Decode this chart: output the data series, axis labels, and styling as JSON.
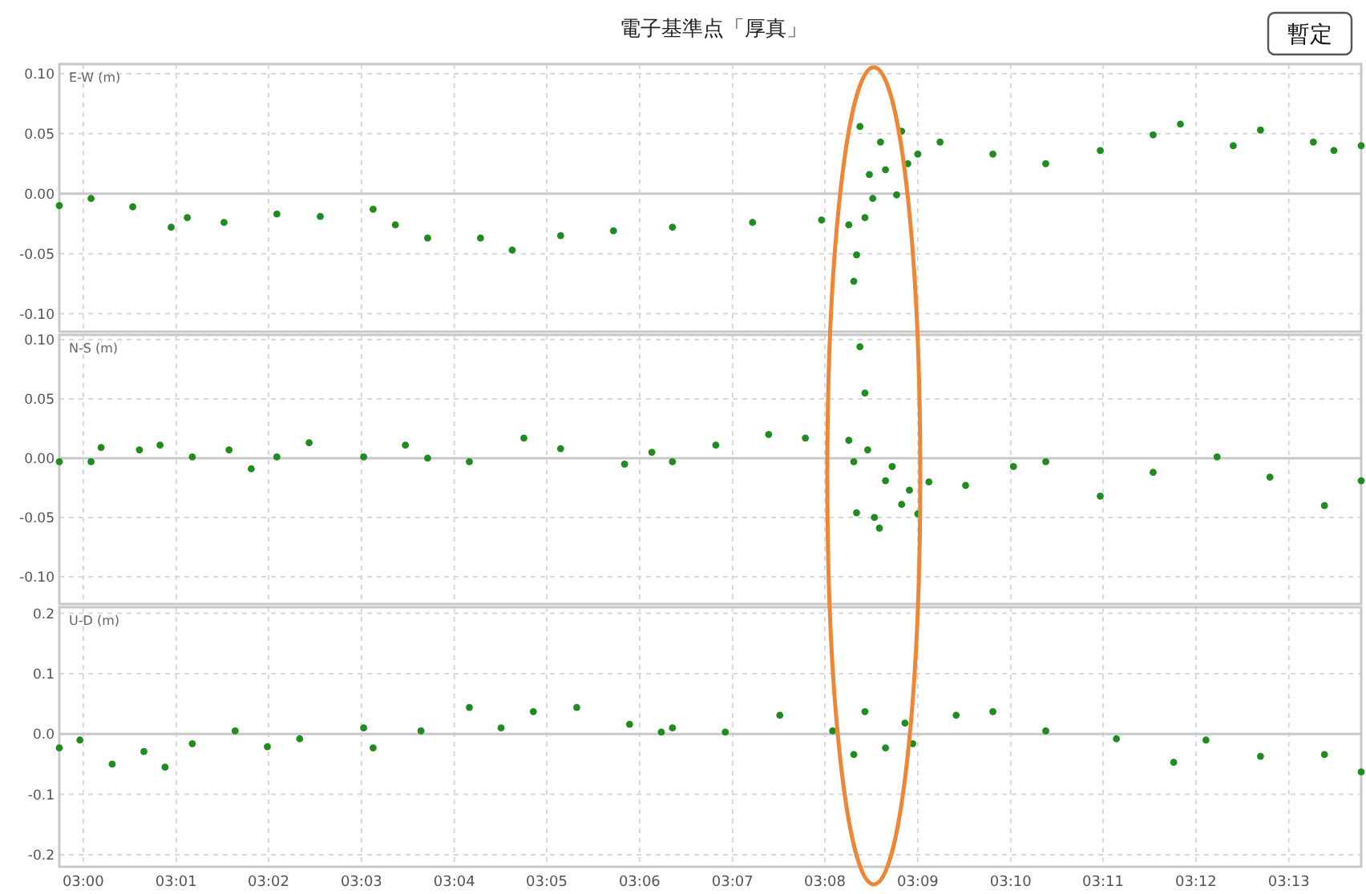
{
  "chart_data": [
    {
      "type": "scatter",
      "title": "電子基準点「厚真」",
      "annotations": [
        "暫定"
      ],
      "ylabel": "E-W (m)",
      "color": "#1f8c1f",
      "marker": "circle",
      "grid": true,
      "tick_labels": "y",
      "xticks": [
        {
          "value": 3.0,
          "label": null
        },
        {
          "value": 3.0167,
          "label": null
        },
        {
          "value": 3.0333,
          "label": null
        },
        {
          "value": 3.05,
          "label": null
        },
        {
          "value": 3.0667,
          "label": null
        },
        {
          "value": 3.0833,
          "label": null
        },
        {
          "value": 3.1,
          "label": null
        },
        {
          "value": 3.1167,
          "label": null
        },
        {
          "value": 3.1333,
          "label": null
        },
        {
          "value": 3.15,
          "label": null
        },
        {
          "value": 3.1667,
          "label": null
        },
        {
          "value": 3.1833,
          "label": null
        },
        {
          "value": 3.2,
          "label": null
        },
        {
          "value": 3.2167,
          "label": null
        }
      ],
      "x": [
        2.9957,
        3.0014,
        3.0089,
        3.0158,
        3.0187,
        3.0253,
        3.0348,
        3.0426,
        3.0521,
        3.0561,
        3.0619,
        3.0714,
        3.0771,
        3.0858,
        3.0953,
        3.1059,
        3.1203,
        3.1327,
        3.1376,
        3.1385,
        3.139,
        3.1396,
        3.1405,
        3.1413,
        3.1419,
        3.1433,
        3.1442,
        3.1462,
        3.1471,
        3.1482,
        3.15,
        3.154,
        3.1635,
        3.173,
        3.1828,
        3.1923,
        3.1972,
        3.2067,
        3.2116,
        3.2211,
        3.2248,
        3.2297
      ],
      "values": [
        -0.01,
        -0.004,
        -0.011,
        -0.028,
        -0.02,
        -0.024,
        -0.017,
        -0.019,
        -0.013,
        -0.026,
        -0.037,
        -0.037,
        -0.047,
        -0.035,
        -0.031,
        -0.028,
        -0.024,
        -0.022,
        -0.026,
        -0.073,
        -0.051,
        0.056,
        -0.02,
        0.016,
        -0.004,
        0.043,
        0.02,
        -0.001,
        0.052,
        0.025,
        0.033,
        0.043,
        0.033,
        0.025,
        0.036,
        0.049,
        0.058,
        0.04,
        0.053,
        0.043,
        0.036,
        0.04
      ],
      "xlim": [
        2.9957,
        3.2297
      ],
      "ylim": [
        -0.115,
        0.108
      ],
      "yticks": [
        {
          "value": 0.1,
          "label": "0.10"
        },
        {
          "value": 0.05,
          "label": "0.05"
        },
        {
          "value": 0,
          "label": "0.00"
        },
        {
          "value": -0.05,
          "label": "-0.05"
        },
        {
          "value": -0.1,
          "label": "-0.10"
        }
      ],
      "ref_lines": [
        {
          "axis": "y",
          "value": 0,
          "color": "#c8c8c8"
        }
      ]
    },
    {
      "type": "scatter",
      "ylabel": "N-S (m)",
      "color": "#1f8c1f",
      "marker": "circle",
      "grid": true,
      "tick_labels": "y",
      "x": [
        2.9957,
        3.0014,
        3.0032,
        3.0101,
        3.0138,
        3.0196,
        3.0262,
        3.0302,
        3.0348,
        3.0406,
        3.0504,
        3.0579,
        3.0619,
        3.0694,
        3.0792,
        3.0858,
        3.0973,
        3.1022,
        3.1059,
        3.1137,
        3.1232,
        3.1298,
        3.1376,
        3.1385,
        3.139,
        3.1396,
        3.1405,
        3.141,
        3.1422,
        3.1431,
        3.1442,
        3.1454,
        3.1471,
        3.1485,
        3.15,
        3.152,
        3.1586,
        3.1672,
        3.173,
        3.1828,
        3.1923,
        3.2038,
        3.2133,
        3.2231,
        3.2297
      ],
      "values": [
        -0.003,
        -0.003,
        0.009,
        0.007,
        0.011,
        0.001,
        0.007,
        -0.009,
        0.001,
        0.013,
        0.001,
        0.011,
        0,
        -0.003,
        0.017,
        0.008,
        -0.005,
        0.005,
        -0.003,
        0.011,
        0.02,
        0.017,
        0.015,
        -0.003,
        -0.046,
        0.094,
        0.055,
        0.007,
        -0.05,
        -0.059,
        -0.019,
        -0.007,
        -0.039,
        -0.027,
        -0.047,
        -0.02,
        -0.023,
        -0.007,
        -0.003,
        -0.032,
        -0.012,
        0.001,
        -0.016,
        -0.04,
        -0.019
      ],
      "xlim": [
        2.9957,
        3.2297
      ],
      "ylim": [
        -0.123,
        0.104
      ],
      "xticks": [
        {
          "value": 3.0,
          "label": null
        },
        {
          "value": 3.0167,
          "label": null
        },
        {
          "value": 3.0333,
          "label": null
        },
        {
          "value": 3.05,
          "label": null
        },
        {
          "value": 3.0667,
          "label": null
        },
        {
          "value": 3.0833,
          "label": null
        },
        {
          "value": 3.1,
          "label": null
        },
        {
          "value": 3.1167,
          "label": null
        },
        {
          "value": 3.1333,
          "label": null
        },
        {
          "value": 3.15,
          "label": null
        },
        {
          "value": 3.1667,
          "label": null
        },
        {
          "value": 3.1833,
          "label": null
        },
        {
          "value": 3.2,
          "label": null
        },
        {
          "value": 3.2167,
          "label": null
        }
      ],
      "yticks": [
        {
          "value": 0.1,
          "label": "0.10"
        },
        {
          "value": 0.05,
          "label": "0.05"
        },
        {
          "value": 0,
          "label": "0.00"
        },
        {
          "value": -0.05,
          "label": "-0.05"
        },
        {
          "value": -0.1,
          "label": "-0.10"
        }
      ],
      "ref_lines": [
        {
          "axis": "y",
          "value": 0,
          "color": "#c8c8c8"
        }
      ]
    },
    {
      "type": "scatter",
      "ylabel": "U-D (m)",
      "color": "#1f8c1f",
      "marker": "circle",
      "grid": true,
      "x": [
        2.9957,
        2.9994,
        3.0052,
        3.0109,
        3.0147,
        3.0196,
        3.0273,
        3.0331,
        3.0389,
        3.0504,
        3.0521,
        3.0607,
        3.0694,
        3.0751,
        3.0809,
        3.0887,
        3.0982,
        3.1039,
        3.1059,
        3.1154,
        3.1252,
        3.1347,
        3.1385,
        3.1405,
        3.1442,
        3.1477,
        3.1491,
        3.1569,
        3.1635,
        3.173,
        3.1857,
        3.196,
        3.2018,
        3.2116,
        3.2231,
        3.2297
      ],
      "values": [
        -0.023,
        -0.01,
        -0.05,
        -0.029,
        -0.055,
        -0.016,
        0.005,
        -0.021,
        -0.008,
        0.01,
        -0.023,
        0.005,
        0.044,
        0.01,
        0.037,
        0.044,
        0.016,
        0.003,
        0.01,
        0.003,
        0.031,
        0.005,
        -0.034,
        0.037,
        -0.023,
        0.018,
        -0.016,
        0.031,
        0.037,
        0.005,
        -0.008,
        -0.047,
        -0.01,
        -0.037,
        -0.034,
        -0.063
      ],
      "xlim": [
        2.9957,
        3.2297
      ],
      "ylim": [
        -0.22,
        0.21
      ],
      "xticks": [
        {
          "value": 3.0,
          "label": "03:00"
        },
        {
          "value": 3.0167,
          "label": "03:01"
        },
        {
          "value": 3.0333,
          "label": "03:02"
        },
        {
          "value": 3.05,
          "label": "03:03"
        },
        {
          "value": 3.0667,
          "label": "03:04"
        },
        {
          "value": 3.0833,
          "label": "03:05"
        },
        {
          "value": 3.1,
          "label": "03:06"
        },
        {
          "value": 3.1167,
          "label": "03:07"
        },
        {
          "value": 3.1333,
          "label": "03:08"
        },
        {
          "value": 3.15,
          "label": "03:09"
        },
        {
          "value": 3.1667,
          "label": "03:10"
        },
        {
          "value": 3.1833,
          "label": "03:11"
        },
        {
          "value": 3.2,
          "label": "03:12"
        },
        {
          "value": 3.2167,
          "label": "03:13"
        }
      ],
      "yticks": [
        0.2,
        0.1,
        {
          "value": 0,
          "label": "0.0"
        },
        -0.1,
        -0.2
      ],
      "ref_lines": [
        {
          "axis": "y",
          "value": 0,
          "color": "#c8c8c8"
        }
      ]
    }
  ]
}
